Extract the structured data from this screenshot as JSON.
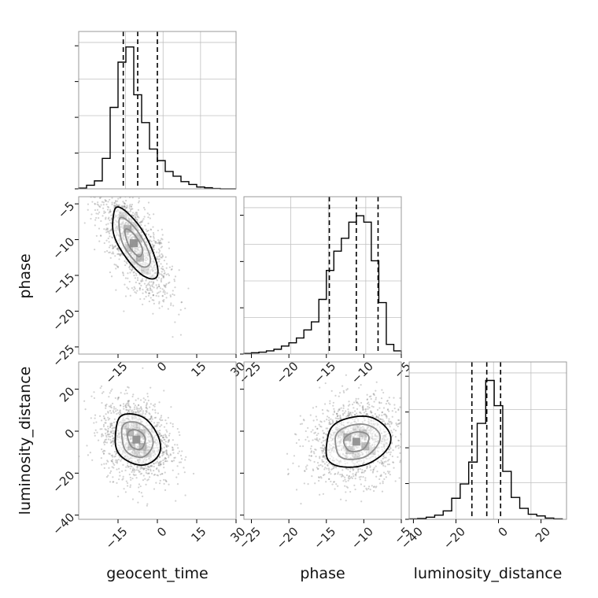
{
  "figure": {
    "type": "corner-plot",
    "background": "#ffffff"
  },
  "chart_data": [
    {
      "type": "histogram",
      "panel": "geocent_time",
      "xlim": [
        -30,
        30
      ],
      "bin_edges": [
        -30,
        -27,
        -24,
        -21,
        -18,
        -15,
        -12,
        -9,
        -6,
        -3,
        0,
        3,
        6,
        9,
        12,
        15,
        18,
        21,
        24,
        27,
        30
      ],
      "counts": [
        0.2,
        1,
        2.2,
        8.4,
        22.5,
        35,
        39.2,
        26,
        18.3,
        11,
        7.8,
        4.8,
        3.5,
        2,
        1.2,
        0.5,
        0.3,
        0.1,
        0,
        0
      ],
      "ymax": 40,
      "quantiles": [
        -13,
        -7.5,
        0
      ],
      "grid": true,
      "y_tick_count": 4
    },
    {
      "type": "histogram",
      "panel": "phase",
      "xlim": [
        -26,
        -5
      ],
      "bin_edges": [
        -26,
        -25,
        -24,
        -23,
        -22,
        -21,
        -20,
        -19,
        -18,
        -17,
        -16,
        -15,
        -14,
        -13,
        -12,
        -11,
        -10,
        -9,
        -8,
        -7,
        -6,
        -5
      ],
      "counts": [
        0.2,
        0.4,
        0.6,
        1,
        1.5,
        2.5,
        3.5,
        5,
        7.5,
        10,
        17,
        26,
        32,
        36,
        41,
        43,
        41,
        29,
        16,
        3,
        1
      ],
      "ymax": 45,
      "quantiles": [
        -14.6,
        -11,
        -8.1
      ],
      "grid": true,
      "y_tick_count": 3,
      "x_ticks": [
        -25,
        -20,
        -15,
        -10,
        -5
      ],
      "x_tick_labels": [
        "−25",
        "−20",
        "−15",
        "−10",
        "−5"
      ]
    },
    {
      "type": "histogram",
      "panel": "luminosity_distance",
      "xlim": [
        -42,
        32
      ],
      "bin_edges": [
        -42,
        -38,
        -34,
        -30,
        -26,
        -22,
        -18,
        -14,
        -10,
        -6,
        -2,
        2,
        6,
        10,
        14,
        18,
        22,
        26,
        30
      ],
      "counts": [
        0.05,
        0.1,
        0.25,
        0.5,
        1,
        2.5,
        4.2,
        6.8,
        11.4,
        16.5,
        13.5,
        5.7,
        2.6,
        1.3,
        0.6,
        0.4,
        0.15,
        0.05
      ],
      "ymax": 17.2,
      "quantiles": [
        -12.5,
        -5.5,
        1
      ],
      "grid": true,
      "y_tick_count": 4,
      "x_ticks": [
        -40,
        -20,
        0,
        20
      ],
      "x_tick_labels": [
        "−40",
        "−20",
        "0",
        "20"
      ]
    },
    {
      "type": "scatter-density",
      "panel": "geocent_time vs phase",
      "xlim": [
        -30,
        30
      ],
      "ylim": [
        -26,
        -4
      ],
      "center": [
        -9,
        -10.5
      ],
      "spread": [
        6,
        3.5
      ],
      "correlation": -0.7,
      "x_ticks": [
        -15,
        0,
        15,
        30
      ],
      "x_tick_labels": [
        "−15",
        "0",
        "15",
        "30"
      ],
      "y_ticks": [
        -5,
        -10,
        -15,
        -20,
        -25
      ],
      "y_tick_labels": [
        "−5",
        "−10",
        "−15",
        "−20",
        "−25"
      ],
      "contour_levels": [
        "39%",
        "86%",
        "99%"
      ]
    },
    {
      "type": "scatter-density",
      "panel": "geocent_time vs luminosity_distance",
      "xlim": [
        -30,
        30
      ],
      "ylim": [
        -42,
        33
      ],
      "center": [
        -8,
        -4
      ],
      "spread": [
        6,
        9
      ],
      "correlation": -0.2,
      "x_ticks": [
        -15,
        0,
        15,
        30
      ],
      "x_tick_labels": [
        "−15",
        "0",
        "15",
        "30"
      ],
      "y_ticks": [
        20,
        0,
        -20,
        -40
      ],
      "y_tick_labels": [
        "20",
        "0",
        "−20",
        "−40"
      ],
      "contour_levels": [
        "39%",
        "86%",
        "99%"
      ]
    },
    {
      "type": "scatter-density",
      "panel": "phase vs luminosity_distance",
      "xlim": [
        -26,
        -5
      ],
      "ylim": [
        -42,
        33
      ],
      "center": [
        -11,
        -5
      ],
      "spread": [
        3,
        9
      ],
      "correlation": 0.15,
      "x_ticks": [
        -25,
        -20,
        -15,
        -10,
        -5
      ],
      "x_tick_labels": [
        "−25",
        "−20",
        "−15",
        "−10",
        "−5"
      ],
      "y_ticks": [
        20,
        0,
        -20,
        -40
      ],
      "contour_levels": [
        "39%",
        "86%",
        "99%"
      ]
    }
  ],
  "labels": {
    "x_geocent_time": "geocent_time",
    "x_phase": "phase",
    "x_luminosity_distance": "luminosity_distance",
    "y_phase": "phase",
    "y_luminosity_distance": "luminosity_distance"
  },
  "colors": {
    "line": "#000000",
    "grid": "#c0c0c0",
    "frame": "#999999",
    "points": "#7f7f7f"
  }
}
